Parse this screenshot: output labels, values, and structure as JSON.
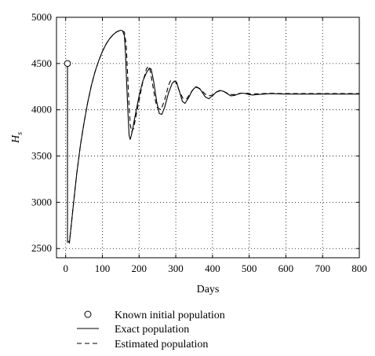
{
  "chart_data": {
    "type": "line",
    "xlabel": "Days",
    "ylabel": "H",
    "ylabel_sub": "s",
    "xlim": [
      -25,
      800
    ],
    "ylim": [
      2400,
      5000
    ],
    "xticks": [
      0,
      100,
      200,
      300,
      400,
      500,
      600,
      700,
      800
    ],
    "yticks": [
      2500,
      3000,
      3500,
      4000,
      4500,
      5000
    ],
    "grid": true,
    "legend_position": "bottom",
    "series": [
      {
        "name": "Exact population",
        "style": "solid",
        "x": [
          8,
          10,
          15,
          20,
          30,
          40,
          50,
          60,
          70,
          80,
          90,
          100,
          110,
          120,
          130,
          140,
          150,
          155,
          160,
          163,
          166,
          170,
          173,
          176,
          180,
          190,
          200,
          210,
          220,
          228,
          233,
          240,
          248,
          255,
          262,
          270,
          280,
          290,
          297,
          302,
          310,
          318,
          325,
          335,
          345,
          355,
          365,
          372,
          380,
          390,
          400,
          410,
          420,
          430,
          440,
          450,
          460,
          470,
          480,
          490,
          500,
          510,
          520,
          540,
          560,
          580,
          600,
          650,
          700,
          750,
          800
        ],
        "y": [
          2580,
          2560,
          2740,
          2940,
          3300,
          3610,
          3860,
          4080,
          4260,
          4410,
          4530,
          4630,
          4710,
          4770,
          4815,
          4845,
          4860,
          4855,
          4800,
          4600,
          4300,
          3950,
          3720,
          3680,
          3740,
          3950,
          4150,
          4310,
          4400,
          4450,
          4440,
          4300,
          4090,
          3960,
          3950,
          4030,
          4180,
          4285,
          4310,
          4300,
          4200,
          4090,
          4070,
          4130,
          4210,
          4250,
          4230,
          4190,
          4140,
          4120,
          4150,
          4190,
          4210,
          4200,
          4175,
          4150,
          4155,
          4170,
          4180,
          4175,
          4165,
          4160,
          4165,
          4170,
          4175,
          4172,
          4170,
          4170,
          4170,
          4170,
          4170
        ]
      },
      {
        "name": "Estimated population",
        "style": "dashed",
        "x": [
          8,
          10,
          15,
          20,
          30,
          40,
          50,
          60,
          70,
          80,
          90,
          100,
          110,
          120,
          130,
          140,
          150,
          160,
          165,
          168,
          172,
          176,
          180,
          185,
          190,
          200,
          210,
          220,
          225,
          230,
          237,
          245,
          250,
          260,
          270,
          280,
          285,
          290,
          300,
          310,
          320,
          330,
          340,
          350,
          360,
          370,
          380,
          390,
          400,
          410,
          420,
          430,
          440,
          450,
          460,
          470,
          480,
          490,
          500,
          510,
          520,
          540,
          560,
          580,
          600,
          650,
          700,
          750,
          800
        ],
        "y": [
          2580,
          2560,
          2740,
          2940,
          3300,
          3610,
          3860,
          4080,
          4260,
          4410,
          4530,
          4630,
          4710,
          4770,
          4815,
          4845,
          4860,
          4840,
          4700,
          4450,
          4100,
          3840,
          3760,
          3800,
          3900,
          4100,
          4300,
          4440,
          4470,
          4430,
          4270,
          4090,
          4020,
          4000,
          4110,
          4260,
          4310,
          4320,
          4300,
          4200,
          4120,
          4120,
          4180,
          4235,
          4240,
          4210,
          4170,
          4150,
          4160,
          4190,
          4205,
          4200,
          4180,
          4165,
          4165,
          4175,
          4180,
          4180,
          4175,
          4170,
          4172,
          4176,
          4178,
          4176,
          4175,
          4175,
          4175,
          4175,
          4175
        ]
      }
    ],
    "initial_point": {
      "name": "Known initial population",
      "x": 5,
      "y": 4500
    },
    "legend": [
      {
        "label": "Known initial population",
        "marker": "circle"
      },
      {
        "label": "Exact population",
        "marker": "solid-line"
      },
      {
        "label": "Estimated population",
        "marker": "dashed-line"
      }
    ]
  }
}
